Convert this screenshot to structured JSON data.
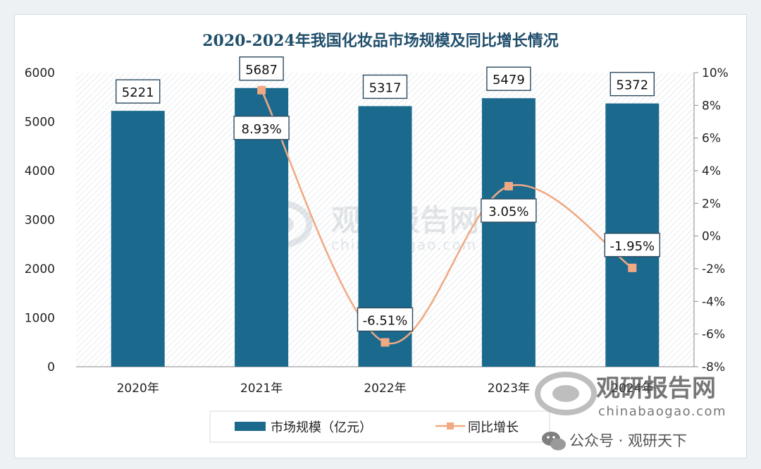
{
  "chart_data": {
    "type": "bar",
    "title": "2020-2024年我国化妆品市场规模及同比增长情况",
    "categories": [
      "2020年",
      "2021年",
      "2022年",
      "2023年",
      "2024年"
    ],
    "series": [
      {
        "name": "市场规模（亿元）",
        "type": "bar",
        "axis": "left",
        "values": [
          5221,
          5687,
          5317,
          5479,
          5372
        ],
        "labels": [
          "5221",
          "5687",
          "5317",
          "5479",
          "5372"
        ]
      },
      {
        "name": "同比增长",
        "type": "line",
        "axis": "right",
        "values": [
          null,
          8.93,
          -6.51,
          3.05,
          -1.95
        ],
        "labels": [
          "",
          "8.93%",
          "-6.51%",
          "3.05%",
          "-1.95%"
        ]
      }
    ],
    "y_left": {
      "min": 0,
      "max": 6000,
      "step": 1000,
      "ticks": [
        "0",
        "1000",
        "2000",
        "3000",
        "4000",
        "5000",
        "6000"
      ]
    },
    "y_right": {
      "min": -8,
      "max": 10,
      "step": 2,
      "ticks": [
        "-8%",
        "-6%",
        "-4%",
        "-2%",
        "0%",
        "2%",
        "4%",
        "6%",
        "8%",
        "10%"
      ]
    },
    "grid": false,
    "legend": "bottom-center"
  },
  "colors": {
    "bar": "#1b6a8e",
    "line": "#f0a982",
    "title": "#1f4e6b",
    "axis_text": "#222222"
  },
  "watermark": {
    "center_brand": "观研报告网",
    "center_url": "chinabaogao.com",
    "corner_brand": "观研报告网",
    "corner_url": "chinabaogao.com",
    "wechat_line": "公众号 · 观研天下"
  }
}
